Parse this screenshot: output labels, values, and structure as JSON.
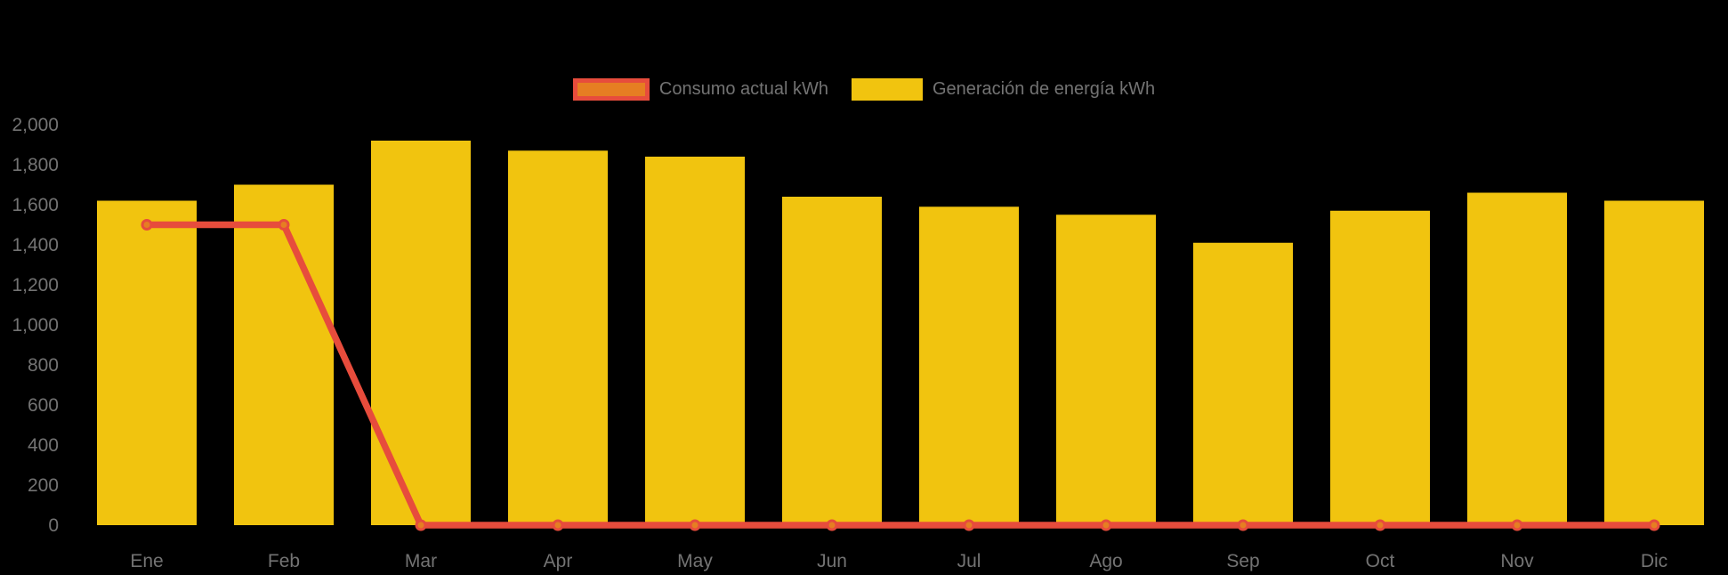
{
  "chart_data": {
    "type": "bar",
    "title": "",
    "categories": [
      "Ene",
      "Feb",
      "Mar",
      "Apr",
      "May",
      "Jun",
      "Jul",
      "Ago",
      "Sep",
      "Oct",
      "Nov",
      "Dic"
    ],
    "series": [
      {
        "name": "Consumo actual kWh",
        "type": "line",
        "line_color": "#E74C3C",
        "marker_color": "#E67E22",
        "values": [
          1500,
          1500,
          0,
          0,
          0,
          0,
          0,
          0,
          0,
          0,
          0,
          0
        ]
      },
      {
        "name": "Generación de energía kWh",
        "type": "bar",
        "color": "#F1C40F",
        "values": [
          1620,
          1700,
          1920,
          1870,
          1840,
          1640,
          1590,
          1550,
          1410,
          1570,
          1660,
          1620
        ]
      }
    ],
    "xlabel": "",
    "ylabel": "",
    "ylim": [
      0,
      2000
    ],
    "ytick_step": 200,
    "ytick_labels": [
      "0",
      "200",
      "400",
      "600",
      "800",
      "1,000",
      "1,200",
      "1,400",
      "1,600",
      "1,800",
      "2,000"
    ],
    "grid": false,
    "legend_position": "top",
    "background_color": "#000000",
    "axis_label_color": "#737373"
  },
  "legend": {
    "items": [
      {
        "label": "Consumo actual kWh"
      },
      {
        "label": "Generación de energía kWh"
      }
    ]
  }
}
